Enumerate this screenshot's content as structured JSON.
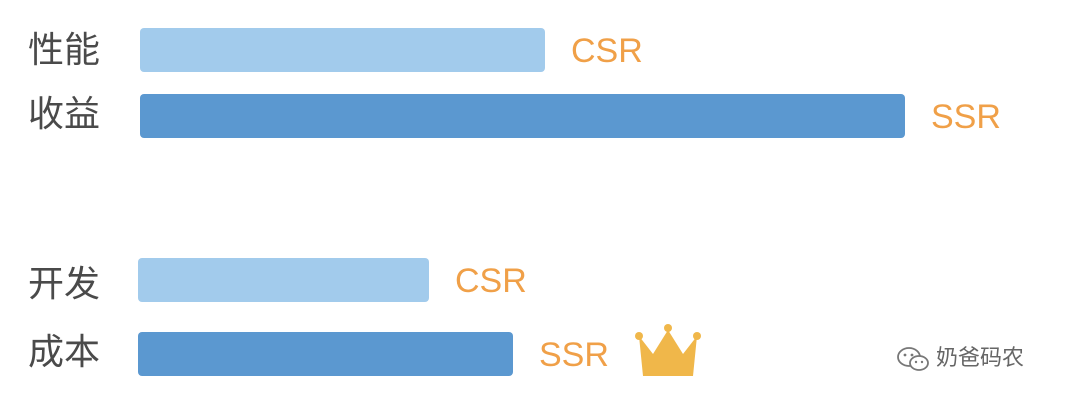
{
  "chart_data": {
    "type": "bar",
    "orientation": "horizontal",
    "row_labels": [
      "性能",
      "收益",
      "开发",
      "成本"
    ],
    "groups": [
      {
        "rows": [
          "性能",
          "收益"
        ],
        "bars": [
          {
            "series": "CSR",
            "value": 0.53
          },
          {
            "series": "SSR",
            "value": 1.0
          }
        ]
      },
      {
        "rows": [
          "开发",
          "成本"
        ],
        "bars": [
          {
            "series": "CSR",
            "value": 0.38
          },
          {
            "series": "SSR",
            "value": 0.49
          }
        ]
      }
    ],
    "bar_labels": [
      "CSR",
      "SSR",
      "CSR",
      "SSR"
    ],
    "series_colors": {
      "CSR": "#A2CBEC",
      "SSR": "#5B98D0"
    },
    "label_color": "#F0A048",
    "winner_marker": {
      "icon": "crown-icon",
      "bar_index": 3,
      "color": "#F0B74A"
    }
  },
  "watermark": {
    "text": "奶爸码农",
    "icon": "wechat-icon"
  }
}
